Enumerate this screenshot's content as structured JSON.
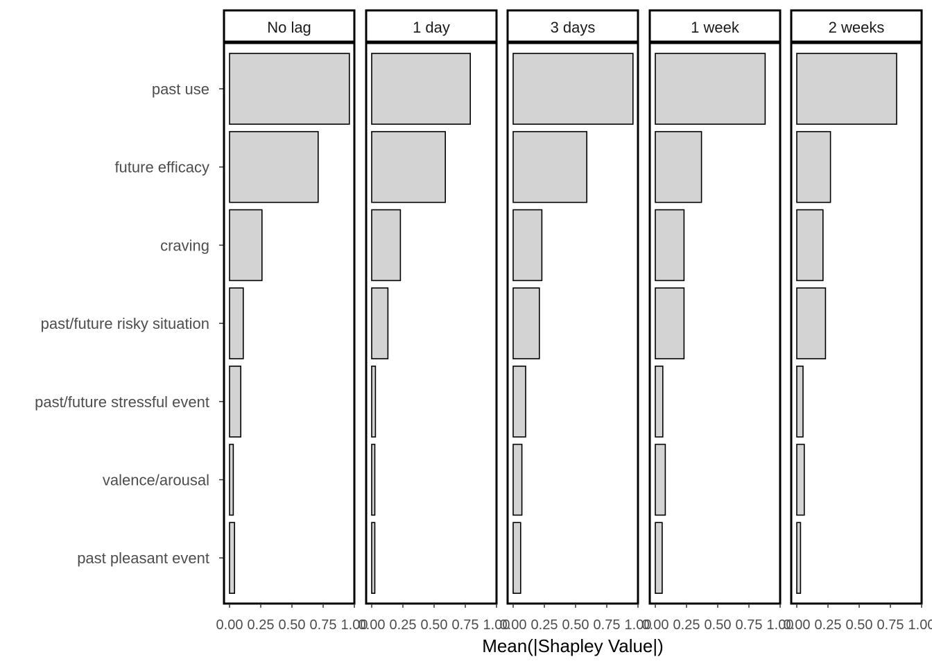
{
  "chart_data": {
    "type": "bar",
    "orientation": "horizontal",
    "xlabel": "Mean(|Shapley Value|)",
    "ylabel": "",
    "xlim": [
      0,
      1.0
    ],
    "xticks": [
      "0.00",
      "0.25",
      "0.50",
      "0.75",
      "1.00"
    ],
    "grid": false,
    "categories": [
      "past use",
      "future efficacy",
      "craving",
      "past/future risky situation",
      "past/future stressful event",
      "valence/arousal",
      "past pleasant event"
    ],
    "panels": [
      {
        "name": "No lag",
        "values": [
          0.96,
          0.71,
          0.26,
          0.11,
          0.09,
          0.03,
          0.04
        ]
      },
      {
        "name": "1 day",
        "values": [
          0.79,
          0.59,
          0.23,
          0.13,
          0.03,
          0.025,
          0.025
        ]
      },
      {
        "name": "3 days",
        "values": [
          0.96,
          0.59,
          0.23,
          0.21,
          0.1,
          0.07,
          0.06
        ]
      },
      {
        "name": "1 week",
        "values": [
          0.88,
          0.37,
          0.23,
          0.23,
          0.06,
          0.08,
          0.055
        ]
      },
      {
        "name": "2 weeks",
        "values": [
          0.8,
          0.27,
          0.21,
          0.23,
          0.05,
          0.06,
          0.03
        ]
      }
    ],
    "colors": {
      "bar_fill": "#d3d3d3",
      "bar_stroke": "#000000",
      "frame": "#000000"
    }
  }
}
